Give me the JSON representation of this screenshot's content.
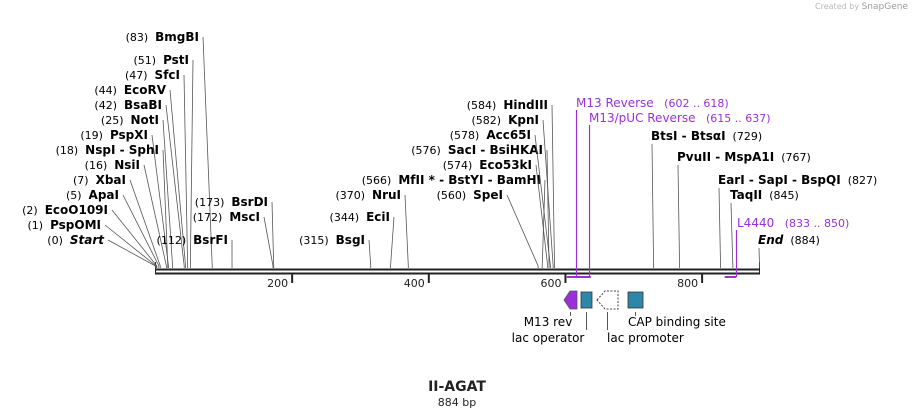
{
  "watermark": {
    "created_by": "Created by",
    "brand": "SnapGene"
  },
  "construct": {
    "name": "II-AGAT",
    "length_label": "884 bp",
    "length": 884
  },
  "colors": {
    "backbone": "#222222",
    "line": "#555555",
    "primer": "#9b30d9",
    "feature": "#2e86a8",
    "promoter": "#ffffff",
    "text": "#000000"
  },
  "ruler": {
    "ticks": [
      200,
      400,
      600,
      800
    ]
  },
  "sites": [
    {
      "pos": "(0)",
      "label": "Start",
      "italic": true,
      "bp": 0
    },
    {
      "pos": "(1)",
      "label": "PspOMI",
      "bp": 1
    },
    {
      "pos": "(2)",
      "label": "EcoO109I",
      "bp": 2
    },
    {
      "pos": "(5)",
      "label": "ApaI",
      "bp": 5
    },
    {
      "pos": "(7)",
      "label": "XbaI",
      "bp": 7
    },
    {
      "pos": "(16)",
      "label": "NsiI",
      "bp": 16
    },
    {
      "pos": "(18)",
      "label": "NspI  -  SphI",
      "bp": 18
    },
    {
      "pos": "(19)",
      "label": "PspXI",
      "bp": 19
    },
    {
      "pos": "(25)",
      "label": "NotI",
      "bp": 25
    },
    {
      "pos": "(42)",
      "label": "BsaBI",
      "bp": 42
    },
    {
      "pos": "(44)",
      "label": "EcoRV",
      "bp": 44
    },
    {
      "pos": "(47)",
      "label": "SfcI",
      "bp": 47
    },
    {
      "pos": "(51)",
      "label": "PstI",
      "bp": 51
    },
    {
      "pos": "(83)",
      "label": "BmgBI",
      "bp": 83
    },
    {
      "pos": "(112)",
      "label": "BsrFI",
      "bp": 112
    },
    {
      "pos": "(172)",
      "label": "MscI",
      "bp": 172
    },
    {
      "pos": "(173)",
      "label": "BsrDI",
      "bp": 173
    },
    {
      "pos": "(315)",
      "label": "BsgI",
      "bp": 315
    },
    {
      "pos": "(344)",
      "label": "EciI",
      "bp": 344
    },
    {
      "pos": "(370)",
      "label": "NruI",
      "bp": 370
    },
    {
      "pos": "(560)",
      "label": "SpeI",
      "bp": 560
    },
    {
      "pos": "(566)",
      "label": "MfII * - BstYI  -  BamHI",
      "bp": 566
    },
    {
      "pos": "(574)",
      "label": "Eco53kI",
      "bp": 574
    },
    {
      "pos": "(576)",
      "label": "SacI  -  BsiHKAI",
      "bp": 576
    },
    {
      "pos": "(578)",
      "label": "Acc65I",
      "bp": 578
    },
    {
      "pos": "(582)",
      "label": "KpnI",
      "bp": 582
    },
    {
      "pos": "(584)",
      "label": "HindIII",
      "bp": 584
    },
    {
      "pos": "(729)",
      "label": "BtsI  -  BtsαI",
      "bp": 729,
      "pos_after": true
    },
    {
      "pos": "(767)",
      "label": "PvuII  -  MspA1I",
      "bp": 767,
      "pos_after": true
    },
    {
      "pos": "(827)",
      "label": "EarI  -  SapI  -  BspQI",
      "bp": 827,
      "pos_after": true
    },
    {
      "pos": "(845)",
      "label": "TaqII",
      "bp": 845,
      "pos_after": true
    },
    {
      "pos": "(884)",
      "label": "End",
      "italic": true,
      "bp": 884,
      "pos_after": true
    }
  ],
  "primers": [
    {
      "name": "M13 Reverse",
      "range": "(602 .. 618)",
      "start": 602,
      "end": 618
    },
    {
      "name": "M13/pUC Reverse",
      "range": "(615 .. 637)",
      "start": 615,
      "end": 637
    },
    {
      "name": "L4440",
      "range": "(833 .. 850)",
      "start": 833,
      "end": 850
    }
  ],
  "features": [
    {
      "name": "M13 rev",
      "kind": "arrow-left"
    },
    {
      "name": "lac operator",
      "kind": "box"
    },
    {
      "name": "lac promoter",
      "kind": "arrow-left-open"
    },
    {
      "name": "CAP binding site",
      "kind": "box"
    }
  ]
}
